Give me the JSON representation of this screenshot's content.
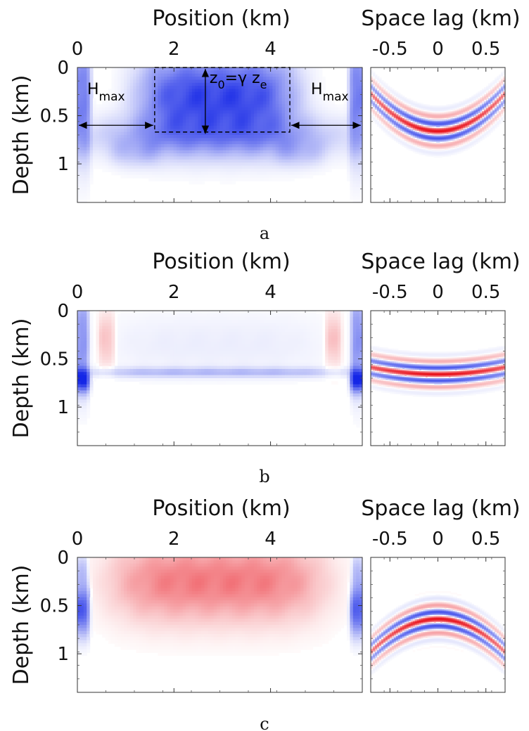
{
  "chart_data": [
    {
      "type": "heatmap",
      "caption": "a",
      "colors": {
        "positive": "#e8101a",
        "negative": "#1426e6",
        "neutral": "#ffffff"
      },
      "panels": [
        {
          "name": "image",
          "xlabel": "Position (km)",
          "ylabel": "Depth (km)",
          "xlim": [
            0,
            5.9
          ],
          "ylim": [
            0,
            1.4
          ],
          "xticks": [
            0,
            2,
            4
          ],
          "xtick_labels": [
            "0",
            "2",
            "4"
          ],
          "yticks": [
            0,
            0.5,
            1
          ],
          "ytick_labels": [
            "0",
            "0.5",
            "1"
          ],
          "interface_depth": 0.6,
          "fields": [
            {
              "x": 2.9,
              "y": 0.3,
              "sx": 1.6,
              "sy": 0.45,
              "amp": -0.85
            },
            {
              "x": 2.9,
              "y": 0.72,
              "sx": 2.8,
              "sy": 0.22,
              "amp": -0.35
            },
            {
              "x": 0.1,
              "y": 0.3,
              "sx": 0.18,
              "sy": 0.6,
              "amp": -0.6
            },
            {
              "x": 5.8,
              "y": 0.3,
              "sx": 0.18,
              "sy": 0.6,
              "amp": -0.6
            },
            {
              "x": 1.2,
              "y": 0.9,
              "sx": 0.5,
              "sy": 0.14,
              "amp": -0.15
            },
            {
              "x": 4.6,
              "y": 0.9,
              "sx": 0.5,
              "sy": 0.14,
              "amp": -0.15
            }
          ]
        },
        {
          "name": "gather",
          "xlabel": "Space lag (km)",
          "xlim": [
            -0.7,
            0.7
          ],
          "ylim": [
            0,
            1.4
          ],
          "xticks": [
            -0.5,
            0,
            0.5
          ],
          "xtick_labels": [
            "-0.5",
            "0",
            "0.5"
          ],
          "event_center_depth": 0.66,
          "event_curvature": -0.8,
          "event_wavelength": 0.16,
          "event_width": 0.15,
          "event_polarity": 1,
          "event_lag_spread": 0.9
        }
      ],
      "annotations": {
        "box": {
          "x": [
            1.6,
            4.4
          ],
          "y": [
            0,
            0.67
          ]
        },
        "arrow_depth": 0.6,
        "left_label_main": "H",
        "left_label_sub": "max",
        "right_label_main": "H",
        "right_label_sub": "max",
        "equation": {
          "z": "z",
          "sub0": "0",
          "eq": "=γ z",
          "sube": "e"
        }
      }
    },
    {
      "type": "heatmap",
      "caption": "b",
      "colors": {
        "positive": "#e8101a",
        "negative": "#1426e6",
        "neutral": "#ffffff"
      },
      "panels": [
        {
          "name": "image",
          "xlabel": "Position (km)",
          "ylabel": "Depth (km)",
          "xlim": [
            0,
            5.9
          ],
          "ylim": [
            0,
            1.4
          ],
          "xticks": [
            0,
            2,
            4
          ],
          "xtick_labels": [
            "0",
            "2",
            "4"
          ],
          "yticks": [
            0,
            0.5,
            1
          ],
          "ytick_labels": [
            "0",
            "0.5",
            "1"
          ],
          "interface_depth": 0.65,
          "fields": [
            {
              "x": 2.9,
              "y": 0.35,
              "sx": 2.4,
              "sy": 0.35,
              "amp": -0.08
            },
            {
              "x": 2.9,
              "y": 0.64,
              "sx": 2.8,
              "sy": 0.05,
              "amp": -0.3
            },
            {
              "x": 0.1,
              "y": 0.3,
              "sx": 0.14,
              "sy": 0.5,
              "amp": -0.5
            },
            {
              "x": 5.8,
              "y": 0.3,
              "sx": 0.14,
              "sy": 0.5,
              "amp": -0.5
            },
            {
              "x": 0.1,
              "y": 0.72,
              "sx": 0.16,
              "sy": 0.12,
              "amp": -0.8
            },
            {
              "x": 5.8,
              "y": 0.72,
              "sx": 0.16,
              "sy": 0.12,
              "amp": -0.8
            },
            {
              "x": 0.6,
              "y": 0.3,
              "sx": 0.18,
              "sy": 0.3,
              "amp": 0.28
            },
            {
              "x": 5.3,
              "y": 0.3,
              "sx": 0.18,
              "sy": 0.3,
              "amp": 0.28
            }
          ]
        },
        {
          "name": "gather",
          "xlabel": "Space lag (km)",
          "xlim": [
            -0.7,
            0.7
          ],
          "ylim": [
            0,
            1.4
          ],
          "xticks": [
            -0.5,
            0,
            0.5
          ],
          "xtick_labels": [
            "-0.5",
            "0",
            "0.5"
          ],
          "event_center_depth": 0.66,
          "event_curvature": -0.15,
          "event_wavelength": 0.14,
          "event_width": 0.13,
          "event_polarity": 1,
          "event_lag_spread": 1.2
        }
      ]
    },
    {
      "type": "heatmap",
      "caption": "c",
      "colors": {
        "positive": "#e8101a",
        "negative": "#1426e6",
        "neutral": "#ffffff"
      },
      "panels": [
        {
          "name": "image",
          "xlabel": "Position (km)",
          "ylabel": "Depth (km)",
          "xlim": [
            0,
            5.9
          ],
          "ylim": [
            0,
            1.4
          ],
          "xticks": [
            0,
            2,
            4
          ],
          "xtick_labels": [
            "0",
            "2",
            "4"
          ],
          "yticks": [
            0,
            0.5,
            1
          ],
          "ytick_labels": [
            "0",
            "0.5",
            "1"
          ],
          "interface_depth": 0.6,
          "fields": [
            {
              "x": 2.9,
              "y": 0.25,
              "sx": 2.2,
              "sy": 0.42,
              "amp": 0.55
            },
            {
              "x": 0.1,
              "y": 0.55,
              "sx": 0.16,
              "sy": 0.25,
              "amp": -0.8
            },
            {
              "x": 5.8,
              "y": 0.55,
              "sx": 0.16,
              "sy": 0.25,
              "amp": -0.8
            },
            {
              "x": 0.1,
              "y": 0.15,
              "sx": 0.12,
              "sy": 0.2,
              "amp": -0.3
            },
            {
              "x": 5.8,
              "y": 0.15,
              "sx": 0.12,
              "sy": 0.2,
              "amp": -0.3
            }
          ]
        },
        {
          "name": "gather",
          "xlabel": "Space lag (km)",
          "xlim": [
            -0.7,
            0.7
          ],
          "ylim": [
            0,
            1.4
          ],
          "xticks": [
            -0.5,
            0,
            0.5
          ],
          "xtick_labels": [
            "-0.5",
            "0",
            "0.5"
          ],
          "event_center_depth": 0.64,
          "event_curvature": 0.7,
          "event_wavelength": 0.15,
          "event_width": 0.15,
          "event_polarity": 1,
          "event_lag_spread": 0.9
        }
      ]
    }
  ]
}
